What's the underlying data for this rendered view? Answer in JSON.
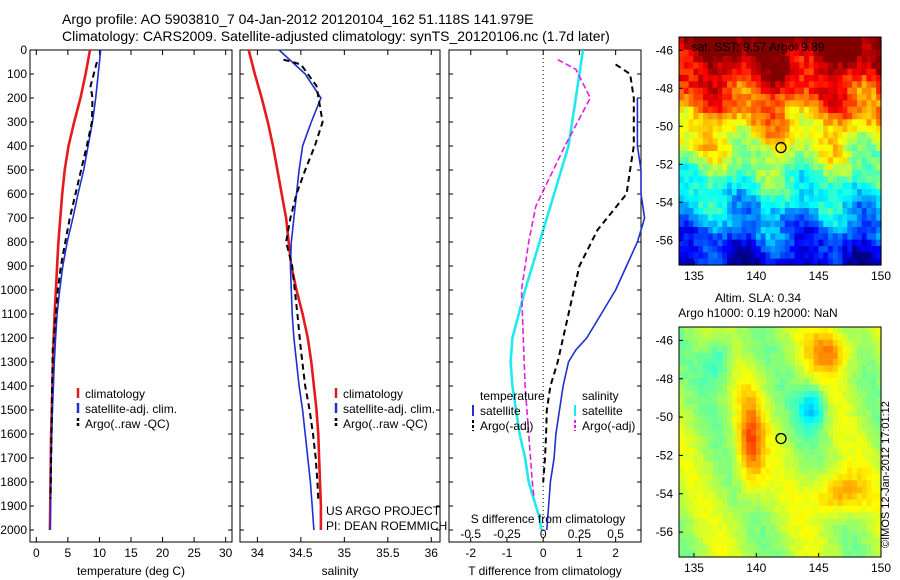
{
  "header": {
    "line1": "Argo profile: AO 5903810_7 04-Jan-2012 20120104_162 51.118S 141.979E",
    "line2": "Climatology: CARS2009. Satellite-adjusted climatology: synTS_20120106.nc (1.7d later)"
  },
  "colors": {
    "climatology": "#e41a1c",
    "satellite": "#1f2fd0",
    "argo": "#000000",
    "satellite_salinity": "#22e8ef",
    "argo_salinity": "#e020e0"
  },
  "chart_data": [
    {
      "type": "line",
      "id": "temperature",
      "xlabel": "temperature (deg C)",
      "xlim": [
        -1,
        31
      ],
      "ylim": [
        2050,
        0
      ],
      "xticks": [
        "0",
        "5",
        "10",
        "15",
        "20",
        "25",
        "30"
      ],
      "yticks": [
        "0",
        "100",
        "200",
        "300",
        "400",
        "500",
        "600",
        "700",
        "800",
        "900",
        "1000",
        "1100",
        "1200",
        "1300",
        "1400",
        "1500",
        "1600",
        "1700",
        "1800",
        "1900",
        "2000"
      ],
      "legend": [
        "climatology",
        "satellite-adj. clim.",
        "Argo(..raw -QC)"
      ],
      "series": [
        {
          "name": "climatology",
          "color": "climatology",
          "dash": "",
          "x": [
            8.5,
            7.8,
            7.0,
            6.0,
            5.1,
            4.5,
            4.1,
            3.8,
            3.5,
            3.3,
            3.1,
            2.9,
            2.75,
            2.65,
            2.55,
            2.45,
            2.35,
            2.3,
            2.25,
            2.2,
            2.15
          ],
          "y": [
            0,
            100,
            200,
            300,
            400,
            500,
            600,
            700,
            800,
            900,
            1000,
            1100,
            1200,
            1300,
            1400,
            1500,
            1600,
            1700,
            1800,
            1900,
            2000
          ]
        },
        {
          "name": "satellite-adj. clim.",
          "color": "satellite",
          "dash": "",
          "x": [
            10.2,
            9.8,
            9.4,
            8.9,
            8.2,
            7.5,
            6.6,
            5.8,
            4.9,
            4.2,
            3.7,
            3.3,
            3.05,
            2.85,
            2.7,
            2.55,
            2.45,
            2.35,
            2.3,
            2.25,
            2.2
          ],
          "y": [
            0,
            100,
            200,
            300,
            400,
            500,
            600,
            700,
            800,
            900,
            1000,
            1100,
            1200,
            1300,
            1400,
            1500,
            1600,
            1700,
            1800,
            1900,
            2000
          ]
        },
        {
          "name": "Argo(..raw -QC)",
          "color": "argo",
          "dash": "6,4",
          "x": [
            9.6,
            8.6,
            8.9,
            8.8,
            8.0,
            7.1,
            6.2,
            5.3,
            4.6,
            3.9,
            3.4,
            3.1,
            2.6,
            2.5,
            2.45,
            2.4,
            2.35,
            2.3,
            2.25
          ],
          "y": [
            50,
            150,
            200,
            300,
            400,
            500,
            600,
            700,
            800,
            900,
            1000,
            1100,
            1250,
            1400,
            1500,
            1600,
            1700,
            1800,
            1870
          ]
        }
      ]
    },
    {
      "type": "line",
      "id": "salinity",
      "xlabel": "salinity",
      "xlim": [
        33.8,
        36.1
      ],
      "ylim": [
        2050,
        0
      ],
      "xticks": [
        "34",
        "34.5",
        "35",
        "35.5",
        "36"
      ],
      "legend": [
        "climatology",
        "satellite-adj. clim.",
        "Argo(..raw -QC)"
      ],
      "annotation": [
        "US ARGO PROJECT",
        "PI: DEAN ROEMMICH"
      ],
      "series": [
        {
          "name": "climatology",
          "color": "climatology",
          "dash": "",
          "x": [
            33.9,
            33.97,
            34.05,
            34.12,
            34.18,
            34.23,
            34.28,
            34.33,
            34.36,
            34.39,
            34.45,
            34.52,
            34.58,
            34.62,
            34.65,
            34.68,
            34.7,
            34.71,
            34.72,
            34.73,
            34.73
          ],
          "y": [
            0,
            100,
            200,
            300,
            400,
            500,
            600,
            700,
            800,
            900,
            1000,
            1100,
            1200,
            1300,
            1400,
            1500,
            1600,
            1700,
            1800,
            1900,
            2000
          ]
        },
        {
          "name": "satellite-adj. clim.",
          "color": "satellite",
          "dash": "",
          "x": [
            34.25,
            34.55,
            34.73,
            34.62,
            34.52,
            34.48,
            34.45,
            34.42,
            34.39,
            34.38,
            34.39,
            34.4,
            34.42,
            34.45,
            34.48,
            34.52,
            34.55,
            34.58,
            34.61,
            34.63,
            34.65
          ],
          "y": [
            0,
            100,
            200,
            300,
            400,
            500,
            600,
            700,
            800,
            900,
            1000,
            1100,
            1200,
            1300,
            1400,
            1500,
            1600,
            1700,
            1800,
            1900,
            2000
          ]
        },
        {
          "name": "Argo(..raw -QC)",
          "color": "argo",
          "dash": "6,4",
          "x": [
            34.3,
            34.5,
            34.68,
            34.75,
            34.66,
            34.55,
            34.45,
            34.38,
            34.33,
            34.4,
            34.43,
            34.46,
            34.5,
            34.55,
            34.6,
            34.64,
            34.67,
            34.69,
            34.7
          ],
          "y": [
            40,
            60,
            150,
            300,
            400,
            500,
            600,
            700,
            800,
            900,
            1000,
            1100,
            1250,
            1400,
            1500,
            1600,
            1700,
            1800,
            1870
          ]
        }
      ]
    },
    {
      "type": "line",
      "id": "difference",
      "xlabel": "T difference from climatology",
      "xlabel2": "S difference from climatology",
      "xlim": [
        -2.6,
        2.7
      ],
      "ylim": [
        2050,
        0
      ],
      "xticks": [
        "-2",
        "-1",
        "0",
        "1",
        "2"
      ],
      "x2ticks": [
        "-0.5",
        "-0.25",
        "0",
        "0.25",
        "0.5"
      ],
      "legend_temperature": {
        "title": "temperature",
        "entries": [
          "satellite",
          "Argo(-adj)"
        ]
      },
      "legend_salinity": {
        "title": "salinity",
        "entries": [
          "satellite",
          "Argo(-adj)"
        ]
      },
      "series": [
        {
          "name": "temperature satellite",
          "color": "satellite",
          "dash": "",
          "x": [
            2.6,
            2.6,
            2.6,
            2.7,
            2.7,
            2.8,
            2.7,
            2.6,
            2.3,
            2.0,
            1.6,
            1.2,
            0.9,
            0.7,
            0.55,
            0.45,
            0.35,
            0.3,
            0.2,
            0.15,
            0.1
          ],
          "y": [
            200,
            300,
            400,
            500,
            600,
            700,
            750,
            800,
            900,
            1000,
            1100,
            1200,
            1250,
            1300,
            1400,
            1500,
            1600,
            1700,
            1800,
            1900,
            2000
          ]
        },
        {
          "name": "temperature Argo(-adj)",
          "color": "argo",
          "dash": "6,4",
          "x": [
            2.0,
            2.4,
            2.5,
            2.5,
            2.4,
            2.3,
            1.5,
            1.0,
            0.7,
            0.4,
            0.2,
            0.1,
            0.08,
            0.05,
            0.0
          ],
          "y": [
            60,
            100,
            200,
            400,
            500,
            600,
            750,
            900,
            1100,
            1300,
            1400,
            1500,
            1600,
            1700,
            1800
          ]
        },
        {
          "name": "salinity satellite",
          "color": "satellite_salinity",
          "dash": "",
          "x": [
            1.1,
            1.0,
            0.9,
            0.7,
            0.3,
            -0.1,
            -0.5,
            -0.85,
            -0.9,
            -0.85,
            -0.75,
            -0.65,
            -0.5,
            -0.4,
            -0.3,
            -0.2,
            -0.1,
            -0.05
          ],
          "y": [
            0,
            100,
            200,
            400,
            600,
            800,
            1000,
            1200,
            1300,
            1400,
            1500,
            1600,
            1700,
            1800,
            1850,
            1900,
            1950,
            2000
          ]
        },
        {
          "name": "salinity Argo(-adj)",
          "color": "argo_salinity",
          "dash": "6,3",
          "x": [
            0.4,
            0.9,
            1.3,
            0.6,
            -0.2,
            -0.4,
            -0.6,
            -0.55,
            -0.5,
            -0.45,
            -0.4,
            -0.35,
            -0.3,
            -0.25
          ],
          "y": [
            40,
            80,
            200,
            400,
            650,
            800,
            1000,
            1200,
            1400,
            1500,
            1600,
            1700,
            1800,
            1870
          ]
        }
      ]
    },
    {
      "type": "heatmap",
      "id": "sst-map",
      "title": "sat. SST: 9.57 Argo: 9.89",
      "xlim": [
        133.8,
        150
      ],
      "ylim": [
        -57.3,
        -45.3
      ],
      "xticks": [
        "135",
        "140",
        "145",
        "150"
      ],
      "yticks": [
        "-46",
        "-48",
        "-50",
        "-52",
        "-54",
        "-56"
      ],
      "marker": {
        "lon": 141.98,
        "lat": -51.12
      }
    },
    {
      "type": "heatmap",
      "id": "sla-map",
      "title": "Altim. SLA: 0.34",
      "subtitle": "Argo h1000: 0.19 h2000: NaN",
      "xlim": [
        133.8,
        150
      ],
      "ylim": [
        -57.3,
        -45.3
      ],
      "xticks": [
        "135",
        "140",
        "145",
        "150"
      ],
      "yticks": [
        "-46",
        "-48",
        "-50",
        "-52",
        "-54",
        "-56"
      ],
      "marker": {
        "lon": 141.98,
        "lat": -51.12
      }
    }
  ],
  "footer": {
    "credit": "©IMOS 12-Jan-2012 17:01:12"
  }
}
